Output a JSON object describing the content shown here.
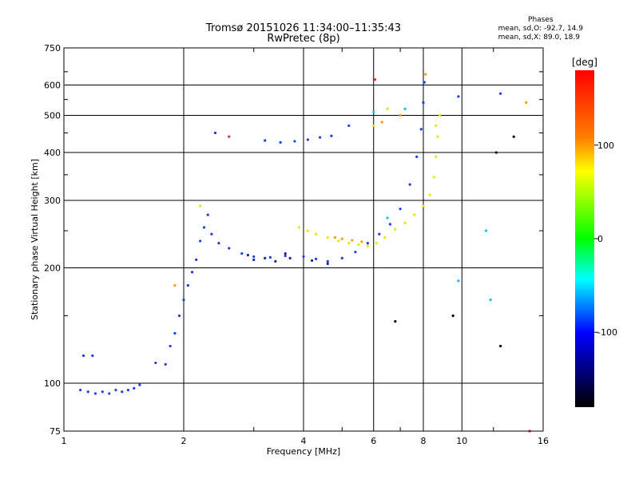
{
  "title_line1": "Tromsø 20151026 11:34:00–11:35:43",
  "title_line2": "RwPretec (8p)",
  "stats": {
    "heading": "Phases",
    "line_o": "mean, sd,O: -92.7, 14.9",
    "line_x": "mean, sd,X:  89.0, 18.9"
  },
  "chart_data": {
    "type": "scatter",
    "xlabel": "Frequency [MHz]",
    "ylabel": "Stationary phase Virtual Height [km]",
    "x_scale": "log2",
    "y_scale": "log",
    "xlim": [
      1,
      16
    ],
    "ylim": [
      75,
      750
    ],
    "x_ticks": [
      1,
      2,
      4,
      6,
      8,
      10,
      16
    ],
    "y_ticks": [
      75,
      100,
      200,
      300,
      400,
      500,
      600,
      750
    ],
    "grid": true,
    "colorbar": {
      "label": "[deg]",
      "ticks": [
        100,
        0,
        -100
      ],
      "range": [
        -180,
        180
      ],
      "colors": [
        "#ff0000",
        "#ff8000",
        "#ffff00",
        "#00ff00",
        "#00ffff",
        "#0000ff",
        "#000000"
      ]
    },
    "series": [
      {
        "color": "#1a3cf0",
        "points": [
          [
            1.1,
            96
          ],
          [
            1.15,
            95
          ],
          [
            1.2,
            94
          ],
          [
            1.25,
            95
          ],
          [
            1.3,
            94
          ],
          [
            1.35,
            96
          ],
          [
            1.4,
            95
          ],
          [
            1.45,
            96
          ],
          [
            1.5,
            97
          ],
          [
            1.55,
            99
          ],
          [
            1.12,
            118
          ],
          [
            1.18,
            118
          ],
          [
            1.7,
            113
          ],
          [
            1.8,
            112
          ],
          [
            1.85,
            125
          ],
          [
            1.9,
            135
          ],
          [
            1.95,
            150
          ],
          [
            2.0,
            165
          ],
          [
            2.05,
            180
          ],
          [
            2.1,
            195
          ],
          [
            2.15,
            210
          ],
          [
            2.2,
            235
          ],
          [
            2.25,
            255
          ],
          [
            2.3,
            275
          ],
          [
            2.35,
            245
          ],
          [
            2.45,
            232
          ],
          [
            2.6,
            225
          ],
          [
            2.8,
            218
          ],
          [
            3.0,
            214
          ],
          [
            3.3,
            213
          ],
          [
            3.6,
            215
          ],
          [
            4.0,
            214
          ],
          [
            4.3,
            211
          ],
          [
            4.6,
            208
          ],
          [
            5.0,
            212
          ],
          [
            5.4,
            220
          ],
          [
            5.8,
            232
          ],
          [
            6.2,
            245
          ],
          [
            6.6,
            260
          ],
          [
            7.0,
            285
          ],
          [
            7.4,
            330
          ],
          [
            7.7,
            390
          ],
          [
            7.9,
            460
          ],
          [
            8.0,
            540
          ],
          [
            8.05,
            610
          ],
          [
            3.2,
            430
          ],
          [
            3.5,
            425
          ],
          [
            3.8,
            428
          ],
          [
            4.1,
            432
          ],
          [
            4.4,
            438
          ],
          [
            4.7,
            442
          ],
          [
            2.4,
            450
          ],
          [
            5.2,
            470
          ],
          [
            9.8,
            560
          ],
          [
            12.5,
            570
          ]
        ]
      },
      {
        "color": "#2020a0",
        "points": [
          [
            3.0,
            210
          ],
          [
            3.2,
            212
          ],
          [
            3.4,
            208
          ],
          [
            3.7,
            212
          ],
          [
            4.2,
            209
          ],
          [
            4.6,
            205
          ],
          [
            2.9,
            216
          ],
          [
            3.6,
            218
          ]
        ]
      },
      {
        "color": "#e6e600",
        "points": [
          [
            3.9,
            255
          ],
          [
            4.1,
            250
          ],
          [
            4.3,
            245
          ],
          [
            4.6,
            240
          ],
          [
            4.9,
            235
          ],
          [
            5.2,
            232
          ],
          [
            5.5,
            230
          ],
          [
            5.8,
            228
          ],
          [
            6.1,
            232
          ],
          [
            6.4,
            240
          ],
          [
            6.8,
            252
          ],
          [
            7.2,
            262
          ],
          [
            7.6,
            275
          ],
          [
            8.0,
            290
          ],
          [
            8.3,
            310
          ],
          [
            8.5,
            345
          ],
          [
            8.6,
            390
          ],
          [
            8.7,
            440
          ],
          [
            8.8,
            500
          ],
          [
            8.6,
            470
          ],
          [
            6.0,
            470
          ],
          [
            6.5,
            520
          ],
          [
            2.2,
            290
          ]
        ]
      },
      {
        "color": "#f0a000",
        "points": [
          [
            4.8,
            240
          ],
          [
            5.0,
            238
          ],
          [
            5.3,
            236
          ],
          [
            5.6,
            234
          ],
          [
            7.0,
            500
          ],
          [
            8.1,
            640
          ],
          [
            6.3,
            480
          ],
          [
            1.9,
            180
          ],
          [
            14.5,
            540
          ]
        ]
      },
      {
        "color": "#00c0ff",
        "points": [
          [
            6.5,
            270
          ],
          [
            7.2,
            520
          ],
          [
            9.8,
            185
          ],
          [
            11.5,
            250
          ],
          [
            11.8,
            165
          ],
          [
            6.0,
            510
          ]
        ]
      },
      {
        "color": "#ff2000",
        "points": [
          [
            6.05,
            620
          ],
          [
            2.6,
            440
          ],
          [
            14.8,
            75
          ]
        ]
      },
      {
        "color": "#000000",
        "points": [
          [
            13.5,
            440
          ],
          [
            12.2,
            400
          ],
          [
            12.5,
            125
          ],
          [
            9.5,
            150
          ],
          [
            6.8,
            145
          ]
        ]
      }
    ]
  }
}
